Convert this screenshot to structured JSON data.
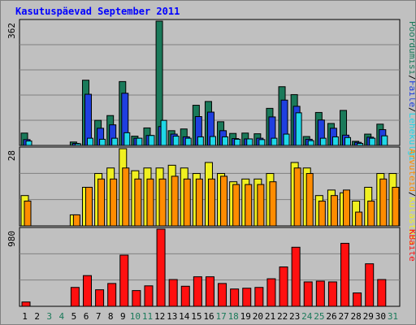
{
  "title": "Kasutuspäevad September 2011",
  "colors": {
    "background": "#c0c0c0",
    "plot_background": "#c0c0c0",
    "title": "#0000ff",
    "hits": "#1a7a5a",
    "files": "#1f3fe0",
    "pages": "#1fd8e8",
    "visits": "#f0f020",
    "sites": "#ff8c00",
    "kbytes": "#ff1010",
    "weekend": "#1a7a5a",
    "weekday": "#000000"
  },
  "chart_data": [
    {
      "type": "bar",
      "title": "Kasutuspäevad September 2011",
      "categories": [
        "1",
        "2",
        "3",
        "4",
        "5",
        "6",
        "7",
        "8",
        "9",
        "10",
        "11",
        "12",
        "13",
        "14",
        "15",
        "16",
        "17",
        "18",
        "19",
        "20",
        "21",
        "22",
        "23",
        "24",
        "25",
        "26",
        "27",
        "28",
        "29",
        "30",
        "31"
      ],
      "weekend_days": [
        "3",
        "4",
        "10",
        "11",
        "17",
        "18",
        "24",
        "25",
        "31"
      ],
      "y_max_label": "362",
      "ylim": [
        0,
        362
      ],
      "right_label_parts": [
        "Pöördumisi",
        "/",
        "Faile",
        "/",
        "Lehekülgi"
      ],
      "series": [
        {
          "name": "Pöördumisi",
          "color": "#1a7a5a",
          "values": [
            36,
            0,
            0,
            0,
            10,
            190,
            73,
            87,
            186,
            27,
            51,
            362,
            43,
            48,
            117,
            128,
            69,
            35,
            36,
            34,
            108,
            171,
            148,
            26,
            96,
            64,
            102,
            12,
            33,
            62,
            0
          ]
        },
        {
          "name": "Faile",
          "color": "#1f3fe0",
          "values": [
            17,
            0,
            0,
            0,
            6,
            149,
            50,
            60,
            152,
            21,
            29,
            55,
            33,
            25,
            84,
            97,
            43,
            20,
            19,
            21,
            83,
            132,
            114,
            18,
            74,
            50,
            30,
            9,
            24,
            46,
            0
          ]
        },
        {
          "name": "Lehekülgi",
          "color": "#1fd8e8",
          "values": [
            13,
            0,
            0,
            0,
            5,
            21,
            18,
            21,
            37,
            21,
            29,
            73,
            27,
            21,
            25,
            26,
            25,
            18,
            19,
            17,
            21,
            33,
            95,
            14,
            21,
            25,
            23,
            6,
            21,
            28,
            0
          ]
        }
      ]
    },
    {
      "type": "bar",
      "categories": [
        "1",
        "2",
        "3",
        "4",
        "5",
        "6",
        "7",
        "8",
        "9",
        "10",
        "11",
        "12",
        "13",
        "14",
        "15",
        "16",
        "17",
        "18",
        "19",
        "20",
        "21",
        "22",
        "23",
        "24",
        "25",
        "26",
        "27",
        "28",
        "29",
        "30",
        "31"
      ],
      "y_max_label": "28",
      "ylim": [
        0,
        28
      ],
      "right_label_parts": [
        "Arvuteid",
        "/",
        "Külastusi"
      ],
      "series": [
        {
          "name": "Külastusi",
          "color": "#f0f020",
          "values": [
            11,
            0,
            0,
            0,
            4,
            14,
            19,
            21,
            28,
            20,
            21,
            21,
            22,
            21,
            19,
            23,
            19,
            16,
            17,
            17,
            19,
            0,
            23,
            21,
            11,
            13,
            12,
            9,
            14,
            19,
            19
          ]
        },
        {
          "name": "Arvuteid",
          "color": "#ff8c00",
          "values": [
            9,
            0,
            0,
            0,
            4,
            14,
            17,
            17,
            21,
            17,
            17,
            17,
            18,
            17,
            17,
            17,
            18,
            15,
            15,
            15,
            16,
            0,
            21,
            19,
            9,
            11,
            13,
            5,
            9,
            17,
            14
          ]
        }
      ]
    },
    {
      "type": "bar",
      "categories": [
        "1",
        "2",
        "3",
        "4",
        "5",
        "6",
        "7",
        "8",
        "9",
        "10",
        "11",
        "12",
        "13",
        "14",
        "15",
        "16",
        "17",
        "18",
        "19",
        "20",
        "21",
        "22",
        "23",
        "24",
        "25",
        "26",
        "27",
        "28",
        "29",
        "30",
        "31"
      ],
      "y_max_label": "980",
      "ylim": [
        0,
        980
      ],
      "right_label_parts": [
        "KBaite"
      ],
      "series": [
        {
          "name": "KBaite",
          "color": "#ff1010",
          "values": [
            55,
            0,
            0,
            0,
            240,
            390,
            210,
            290,
            650,
            200,
            260,
            980,
            340,
            255,
            375,
            375,
            290,
            220,
            230,
            240,
            350,
            500,
            750,
            310,
            320,
            310,
            800,
            170,
            540,
            340,
            0
          ]
        }
      ]
    }
  ]
}
